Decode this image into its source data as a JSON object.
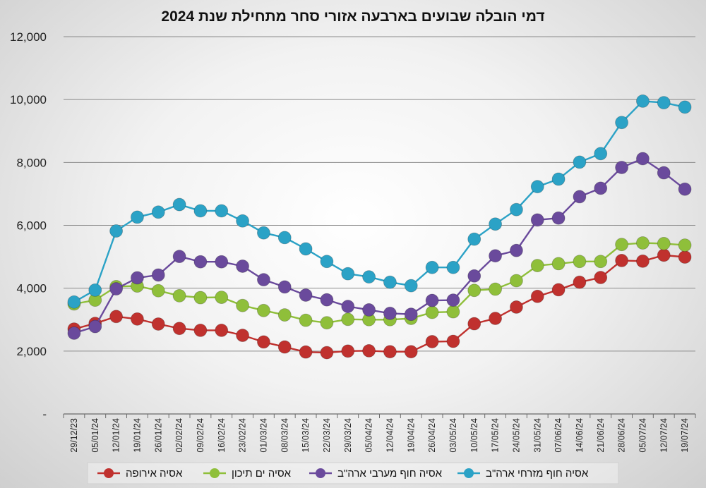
{
  "chart_data": {
    "type": "line",
    "title": "דמי הובלה שבועים בארבעה אזורי סחר מתחילת שנת 2024",
    "xlabel": "",
    "ylabel": "",
    "ylim": [
      0,
      12000
    ],
    "yticks": [
      0,
      2000,
      4000,
      6000,
      8000,
      10000,
      12000
    ],
    "ytick_labels": [
      "-",
      "2,000",
      "4,000",
      "6,000",
      "8,000",
      "10,000",
      "12,000"
    ],
    "grid": "horizontal",
    "legend_position": "bottom",
    "categories": [
      "29/12/23",
      "05/01/24",
      "12/01/24",
      "19/01/24",
      "26/01/24",
      "02/02/24",
      "09/02/24",
      "16/02/24",
      "23/02/24",
      "01/03/24",
      "08/03/24",
      "15/03/24",
      "22/03/24",
      "29/03/24",
      "05/04/24",
      "12/04/24",
      "19/04/24",
      "26/04/24",
      "03/05/24",
      "10/05/24",
      "17/05/24",
      "24/05/24",
      "31/05/24",
      "07/06/24",
      "14/06/24",
      "21/06/24",
      "28/06/24",
      "05/07/24",
      "12/07/24",
      "19/07/24"
    ],
    "series": [
      {
        "name": "אסיה אירופה",
        "color": "#c0312e",
        "values": [
          2700,
          2880,
          3100,
          3020,
          2860,
          2720,
          2660,
          2660,
          2500,
          2290,
          2130,
          1970,
          1950,
          2000,
          2010,
          1980,
          1980,
          2300,
          2310,
          2870,
          3040,
          3400,
          3740,
          3950,
          4190,
          4340,
          4880,
          4860,
          5050,
          4990
        ]
      },
      {
        "name": "אסיה ים תיכון",
        "color": "#8fbf3a",
        "values": [
          3500,
          3620,
          4050,
          4070,
          3920,
          3760,
          3700,
          3710,
          3450,
          3290,
          3150,
          2980,
          2900,
          3010,
          3000,
          3000,
          3040,
          3230,
          3250,
          3930,
          3970,
          4240,
          4720,
          4780,
          4850,
          4850,
          5390,
          5440,
          5420,
          5370
        ]
      },
      {
        "name": "אסיה חוף מערבי ארה\"ב",
        "color": "#6a4a9c",
        "values": [
          2570,
          2780,
          3980,
          4330,
          4420,
          5010,
          4840,
          4840,
          4700,
          4270,
          4040,
          3780,
          3630,
          3420,
          3310,
          3200,
          3170,
          3610,
          3620,
          4390,
          5030,
          5200,
          6170,
          6230,
          6910,
          7180,
          7840,
          8120,
          7670,
          7150
        ]
      },
      {
        "name": "אסיה חוף מזרחי ארה\"ב",
        "color": "#2ba2c6",
        "values": [
          3560,
          3940,
          5820,
          6260,
          6420,
          6660,
          6460,
          6460,
          6140,
          5760,
          5610,
          5250,
          4850,
          4460,
          4360,
          4190,
          4080,
          4660,
          4660,
          5560,
          6040,
          6500,
          7230,
          7470,
          8010,
          8280,
          9270,
          9950,
          9900,
          9760
        ]
      }
    ]
  }
}
